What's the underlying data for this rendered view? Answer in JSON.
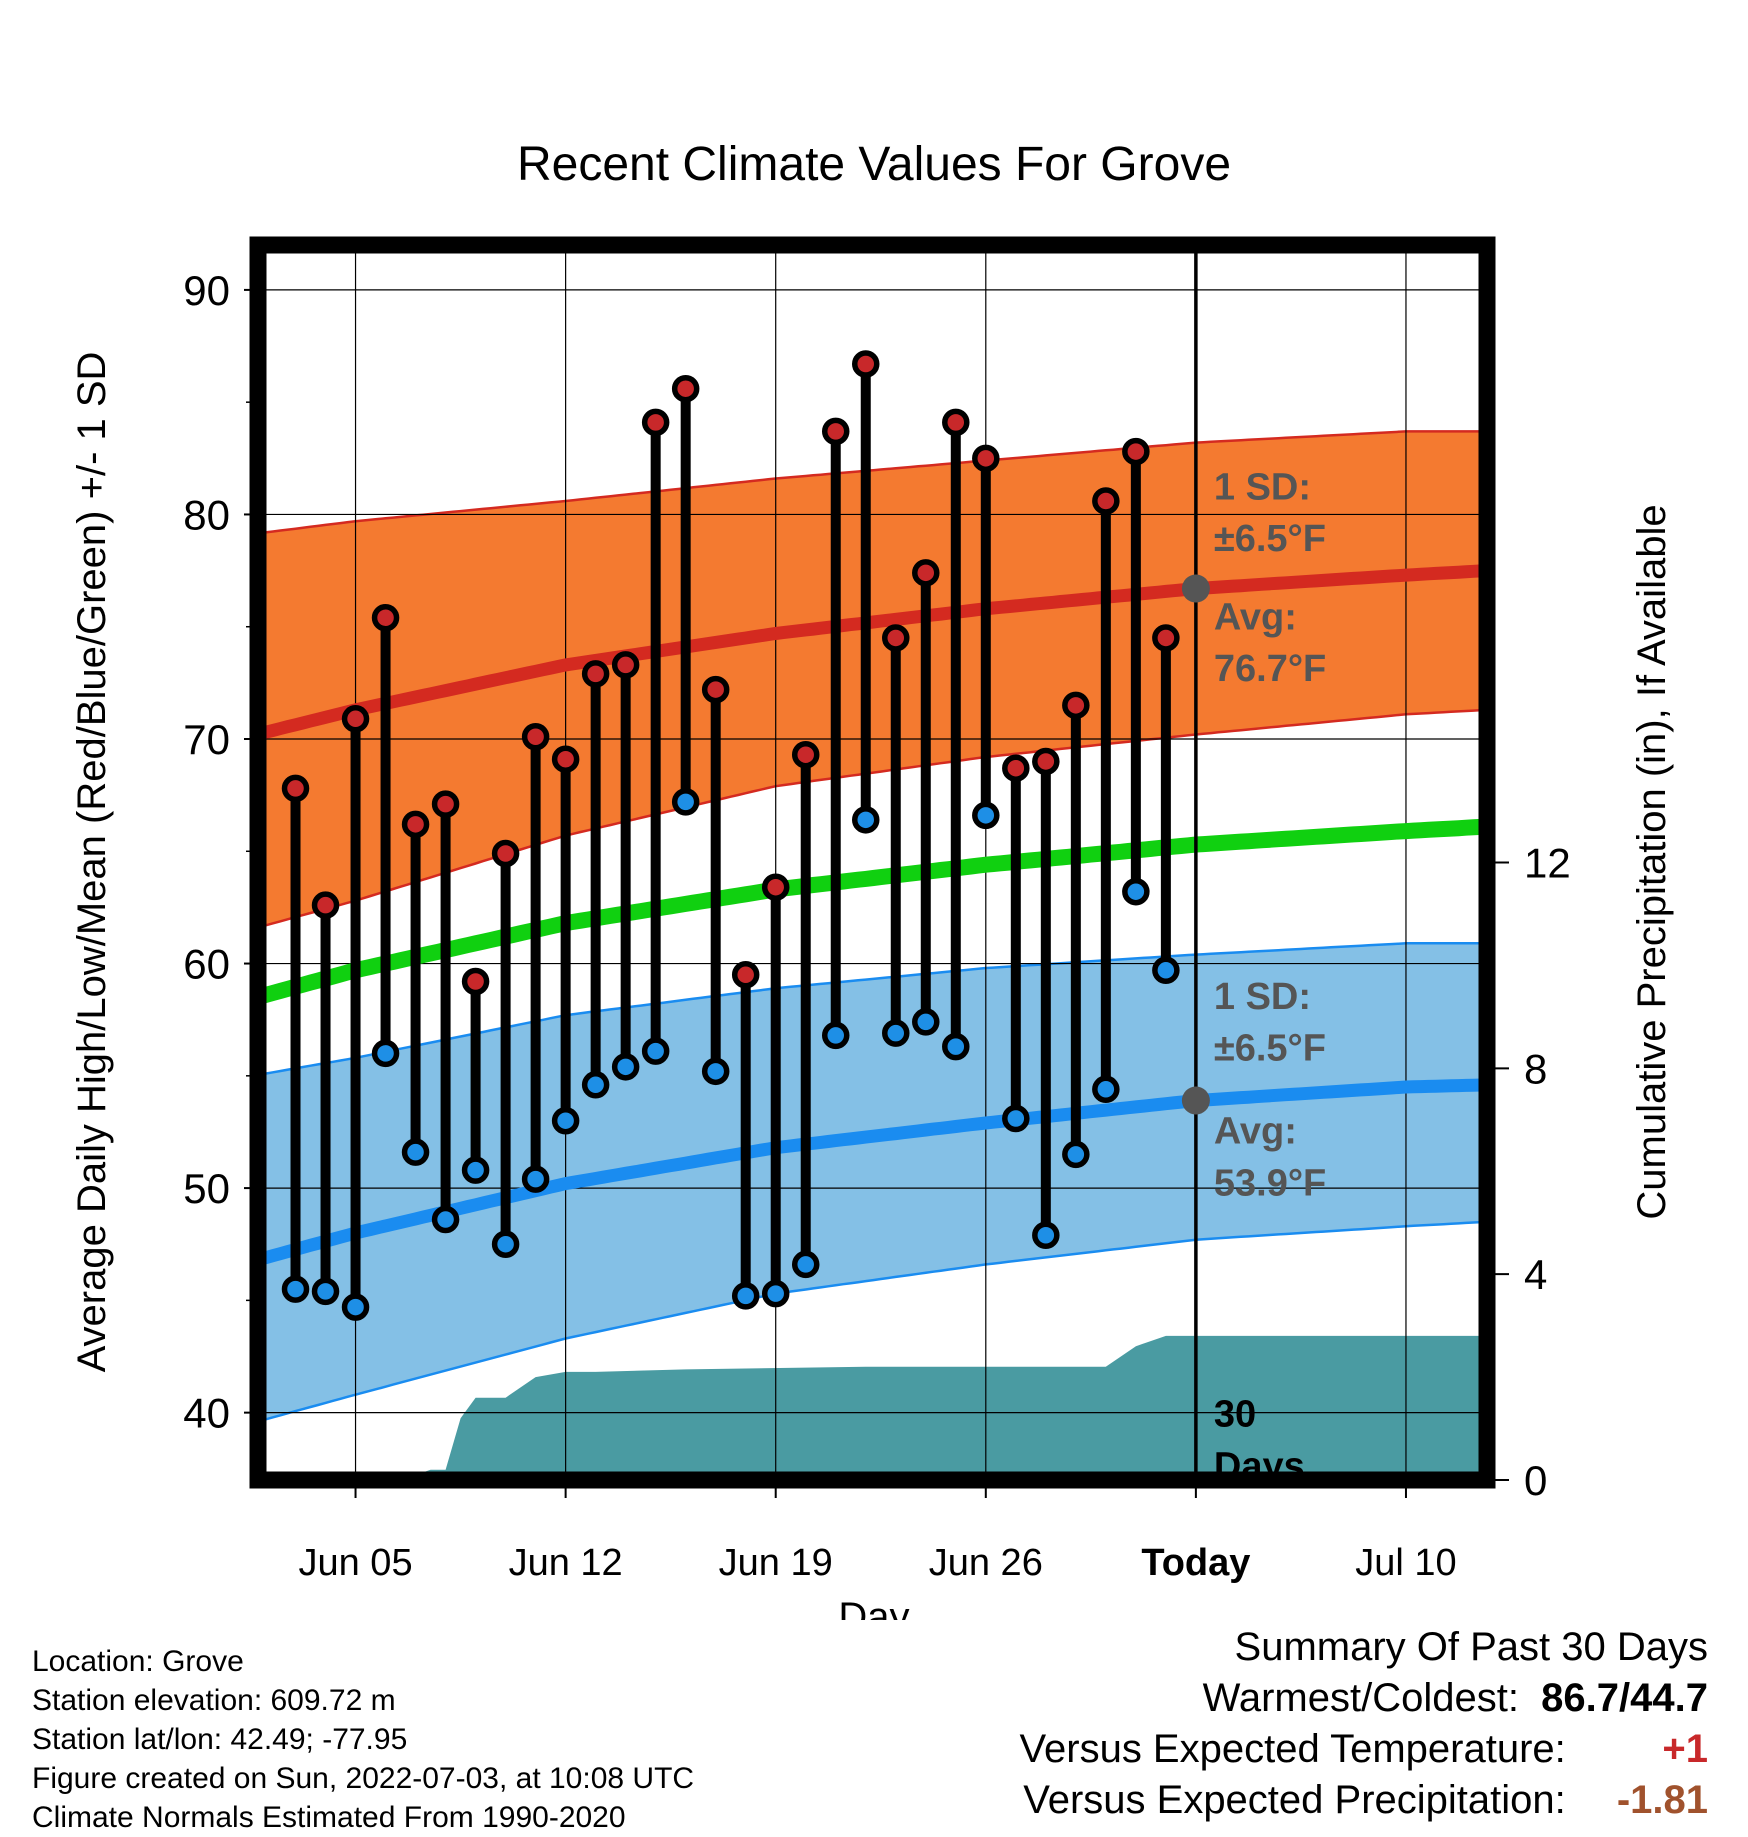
{
  "chart_data": {
    "type": "line",
    "title": "Recent Climate Values For Grove",
    "xlabel": "Day",
    "ylabel": "Average Daily High/Low/Mean (Red/Blue/Green) +/- 1 SD",
    "y2label": "Cumulative Precipitation (in), If Available",
    "x_ticks": [
      "Jun 05",
      "Jun 12",
      "Jun 19",
      "Jun 26",
      "Today",
      "Jul 10"
    ],
    "x_tick_days": [
      5,
      12,
      19,
      26,
      33,
      40
    ],
    "xlim": [
      1.75,
      42.7
    ],
    "ylim": [
      37,
      92
    ],
    "y_ticks": [
      40,
      50,
      60,
      70,
      80,
      90
    ],
    "y2lim": [
      0,
      24
    ],
    "y2_ticks": [
      0,
      4,
      8,
      12
    ],
    "grid": true,
    "today_day": 33,
    "colors": {
      "high_band": "#f47a30",
      "high_line": "#d42a20",
      "low_band": "#84c0e6",
      "low_line": "#1a8cf0",
      "mean_line": "#10d010",
      "precip": "#4a9ba2",
      "high_point": "#c8282a",
      "low_point": "#1e8fe6"
    },
    "normals": {
      "days": [
        2,
        5,
        12,
        19,
        26,
        33,
        40,
        42.7
      ],
      "high_avg": [
        70.3,
        71.3,
        73.3,
        74.7,
        75.8,
        76.7,
        77.3,
        77.5
      ],
      "high_upper": [
        79.2,
        79.7,
        80.6,
        81.6,
        82.4,
        83.2,
        83.7,
        83.7
      ],
      "high_lower": [
        61.7,
        62.8,
        65.7,
        67.9,
        69.2,
        70.2,
        71.1,
        71.3
      ],
      "low_avg": [
        46.9,
        48.0,
        50.2,
        51.8,
        52.9,
        53.9,
        54.5,
        54.6
      ],
      "low_upper": [
        55.1,
        55.8,
        57.7,
        58.9,
        59.8,
        60.4,
        60.9,
        60.9
      ],
      "low_lower": [
        39.7,
        40.8,
        43.3,
        45.3,
        46.6,
        47.7,
        48.3,
        48.5
      ],
      "mean_avg": [
        58.6,
        59.7,
        61.8,
        63.3,
        64.4,
        65.3,
        65.9,
        66.1
      ]
    },
    "daily": [
      {
        "day": 3,
        "high": 67.8,
        "low": 45.5
      },
      {
        "day": 4,
        "high": 62.6,
        "low": 45.4
      },
      {
        "day": 5,
        "high": 70.9,
        "low": 44.7
      },
      {
        "day": 6,
        "high": 75.4,
        "low": 56.0
      },
      {
        "day": 7,
        "high": 66.2,
        "low": 51.6
      },
      {
        "day": 8,
        "high": 67.1,
        "low": 48.6
      },
      {
        "day": 9,
        "high": 59.2,
        "low": 50.8
      },
      {
        "day": 10,
        "high": 64.9,
        "low": 47.5
      },
      {
        "day": 11,
        "high": 70.1,
        "low": 50.4
      },
      {
        "day": 12,
        "high": 69.1,
        "low": 53.0
      },
      {
        "day": 13,
        "high": 72.9,
        "low": 54.6
      },
      {
        "day": 14,
        "high": 73.3,
        "low": 55.4
      },
      {
        "day": 15,
        "high": 84.1,
        "low": 56.1
      },
      {
        "day": 16,
        "high": 85.6,
        "low": 67.2
      },
      {
        "day": 17,
        "high": 72.2,
        "low": 55.2
      },
      {
        "day": 18,
        "high": 59.5,
        "low": 45.2
      },
      {
        "day": 19,
        "high": 63.4,
        "low": 45.3
      },
      {
        "day": 20,
        "high": 69.3,
        "low": 46.6
      },
      {
        "day": 21,
        "high": 83.7,
        "low": 56.8
      },
      {
        "day": 22,
        "high": 86.7,
        "low": 66.4
      },
      {
        "day": 23,
        "high": 74.5,
        "low": 56.9
      },
      {
        "day": 24,
        "high": 77.4,
        "low": 57.4
      },
      {
        "day": 25,
        "high": 84.1,
        "low": 56.3
      },
      {
        "day": 26,
        "high": 82.5,
        "low": 66.6
      },
      {
        "day": 27,
        "high": 68.7,
        "low": 53.1
      },
      {
        "day": 28,
        "high": 69.0,
        "low": 47.9
      },
      {
        "day": 29,
        "high": 71.5,
        "low": 51.5
      },
      {
        "day": 30,
        "high": 80.6,
        "low": 54.4
      },
      {
        "day": 31,
        "high": 82.8,
        "low": 63.2
      },
      {
        "day": 32,
        "high": 74.5,
        "low": 59.7
      }
    ],
    "precip_cumulative": {
      "days": [
        1.75,
        6,
        6.5,
        7,
        7.5,
        8,
        8.5,
        9,
        10,
        11,
        12,
        13,
        16,
        22,
        30,
        31,
        32,
        33,
        42.7
      ],
      "values": [
        0,
        0,
        0.05,
        0.1,
        0.2,
        0.2,
        1.2,
        1.6,
        1.6,
        2.0,
        2.1,
        2.1,
        2.15,
        2.2,
        2.2,
        2.6,
        2.8,
        2.8,
        2.8
      ]
    },
    "annotations": {
      "high_sd_label": "1 SD:",
      "high_sd_value": "±6.5°F",
      "high_avg_label": "Avg:",
      "high_avg_value": "76.7°F",
      "low_sd_label": "1 SD:",
      "low_sd_value": "±6.5°F",
      "low_avg_label": "Avg:",
      "low_avg_value": "53.9°F",
      "window_line1": "30",
      "window_line2": "Days"
    }
  },
  "station_info": {
    "location": "Location: Grove",
    "elevation": "Station elevation: 609.72 m",
    "latlon": "Station lat/lon: 42.49; -77.95",
    "created": "Figure created on Sun, 2022-07-03, at 10:08 UTC",
    "normals": "Climate Normals Estimated From 1990-2020"
  },
  "summary": {
    "title": "Summary Of Past 30 Days",
    "warm_cold_label": "Warmest/Coldest:",
    "warm_cold_value": "86.7/44.7",
    "temp_label": "Versus Expected Temperature:",
    "temp_value": "+1",
    "temp_color": "#c8282a",
    "precip_label": "Versus Expected Precipitation:",
    "precip_value": "-1.81",
    "precip_color": "#a0522d"
  }
}
